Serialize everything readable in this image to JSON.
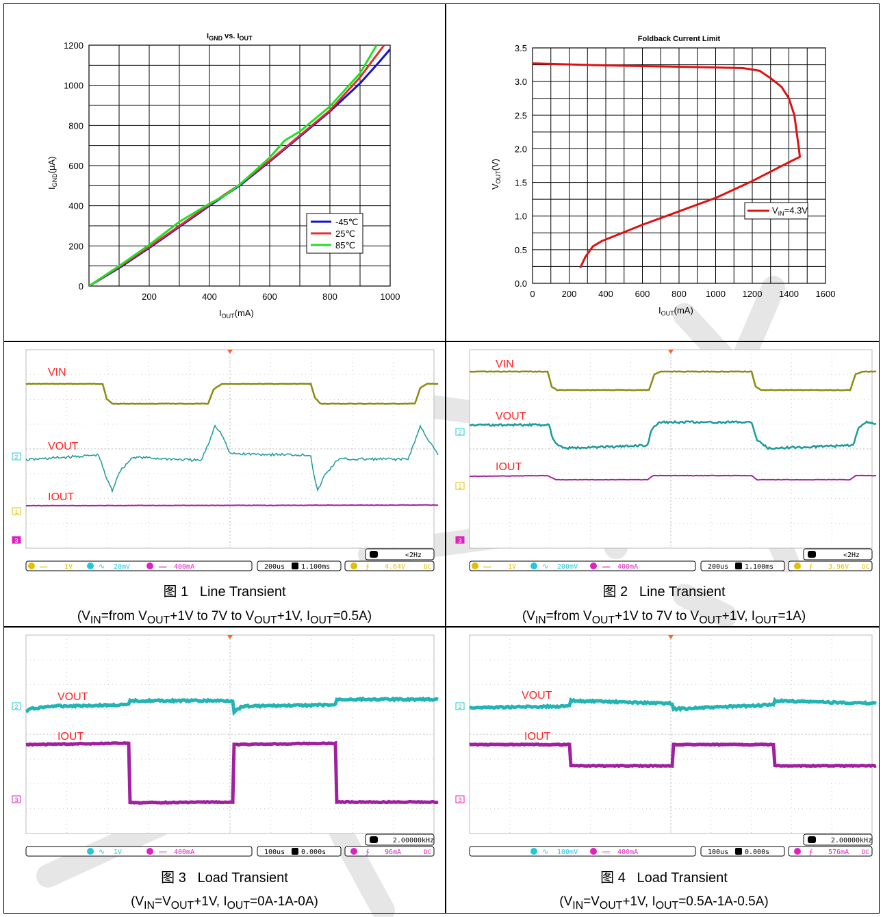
{
  "chart_data": [
    {
      "type": "line",
      "title": "I_GND vs. I_OUT",
      "title_parts": {
        "main1": "I",
        "sub1": "GND",
        "mid": " vs. I",
        "sub2": "OUT"
      },
      "xlabel_parts": {
        "main": "I",
        "sub": "OUT",
        "unit": "(mA)"
      },
      "ylabel_parts": {
        "main": "I",
        "sub": "GND",
        "unit": "(µA)"
      },
      "xlim": [
        0,
        1000
      ],
      "ylim": [
        0,
        1200
      ],
      "xticks": [
        200,
        400,
        600,
        800,
        1000
      ],
      "yticks": [
        0,
        200,
        400,
        600,
        800,
        1000,
        1200
      ],
      "grid": true,
      "legend_position": "bottom-right",
      "series": [
        {
          "name": "-45℃",
          "color": "#1010d0",
          "x": [
            0,
            100,
            200,
            300,
            400,
            500,
            600,
            700,
            800,
            900,
            960,
            1000
          ],
          "y": [
            0,
            90,
            190,
            295,
            400,
            500,
            620,
            745,
            870,
            1010,
            1110,
            1180
          ]
        },
        {
          "name": "25℃",
          "color": "#e03030",
          "x": [
            0,
            100,
            200,
            300,
            400,
            500,
            600,
            700,
            800,
            900,
            960,
            980
          ],
          "y": [
            0,
            95,
            195,
            300,
            405,
            505,
            625,
            750,
            875,
            1040,
            1160,
            1200
          ]
        },
        {
          "name": "85℃",
          "color": "#20e020",
          "x": [
            0,
            100,
            200,
            300,
            400,
            450,
            500,
            600,
            650,
            700,
            800,
            900,
            955
          ],
          "y": [
            0,
            100,
            205,
            320,
            410,
            450,
            505,
            640,
            725,
            770,
            895,
            1060,
            1200
          ]
        }
      ]
    },
    {
      "type": "line",
      "title": "Foldback Current Limit",
      "xlabel_parts": {
        "main": "I",
        "sub": "OUT",
        "unit": "(mA)"
      },
      "ylabel_parts": {
        "main": "V",
        "sub": "OUT",
        "unit": "(V)"
      },
      "xlim": [
        0,
        1600
      ],
      "ylim": [
        0,
        3.5
      ],
      "xticks": [
        0,
        200,
        400,
        600,
        800,
        1000,
        1200,
        1400,
        1600
      ],
      "xtick_labels": [
        "0",
        "200",
        "400",
        "600",
        "800",
        "1000",
        "1200",
        "1400",
        "1600"
      ],
      "yticks": [
        0,
        0.5,
        1.0,
        1.5,
        2.0,
        2.5,
        3.0,
        3.5
      ],
      "ytick_labels": [
        "0.0",
        "0.5",
        "1.0",
        "1.5",
        "2.0",
        "2.5",
        "3.0",
        "3.5"
      ],
      "grid": true,
      "legend_position": "right",
      "series": [
        {
          "name_parts": {
            "main": "V",
            "sub": "IN",
            "rest": "=4.3V"
          },
          "color": "#e01010",
          "x": [
            0,
            400,
            800,
            1150,
            1240,
            1300,
            1360,
            1400,
            1430,
            1445,
            1455,
            1460,
            1400,
            1200,
            1000,
            800,
            600,
            380,
            330,
            290,
            260
          ],
          "y": [
            3.27,
            3.24,
            3.22,
            3.2,
            3.16,
            3.05,
            2.92,
            2.75,
            2.5,
            2.2,
            2.0,
            1.88,
            1.8,
            1.52,
            1.27,
            1.07,
            0.87,
            0.63,
            0.55,
            0.4,
            0.23
          ]
        }
      ]
    }
  ],
  "scopes": [
    {
      "labels": [
        "VIN",
        "VOUT",
        "IOUT"
      ],
      "status": {
        "ch1": "1V",
        "ch2": "20mV",
        "ch3": "400mA",
        "time": "200us",
        "delay": "1.100ms",
        "trig_ch": "1",
        "trig": "4.64V",
        "coupling": "DC",
        "freq": "<2Hz"
      }
    },
    {
      "labels": [
        "VIN",
        "VOUT",
        "IOUT"
      ],
      "status": {
        "ch1": "1V",
        "ch2": "200mV",
        "ch3": "400mA",
        "time": "200us",
        "delay": "1.100ms",
        "trig_ch": "1",
        "trig": "3.96V",
        "coupling": "DC",
        "freq": "<2Hz"
      }
    },
    {
      "labels": [
        "VOUT",
        "IOUT"
      ],
      "status": {
        "ch2": "1V",
        "ch3": "400mA",
        "time": "100us",
        "delay": "0.000s",
        "trig_ch": "3",
        "trig": "96mA",
        "coupling": "DC",
        "freq": "2.00000kHz"
      }
    },
    {
      "labels": [
        "VOUT",
        "IOUT"
      ],
      "status": {
        "ch2": "100mV",
        "ch3": "400mA",
        "time": "100us",
        "delay": "0.000s",
        "trig_ch": "3",
        "trig": "576mA",
        "coupling": "DC",
        "freq": "2.00000kHz"
      }
    }
  ],
  "captions": [
    {
      "fig": "图 1",
      "name": "Line Transient",
      "cond": "(V<sub>IN</sub>=from V<sub>OUT</sub>+1V to 7V to V<sub>OUT</sub>+1V, I<sub>OUT</sub>=0.5A)"
    },
    {
      "fig": "图 2",
      "name": "Line Transient",
      "cond": "(V<sub>IN</sub>=from V<sub>OUT</sub>+1V to 7V to V<sub>OUT</sub>+1V, I<sub>OUT</sub>=1A)"
    },
    {
      "fig": "图 3",
      "name": "Load Transient",
      "cond": "(V<sub>IN</sub>=V<sub>OUT</sub>+1V, I<sub>OUT</sub>=0A-1A-0A)"
    },
    {
      "fig": "图 4",
      "name": "Load Transient",
      "cond": "(V<sub>IN</sub>=V<sub>OUT</sub>+1V, I<sub>OUT</sub>=0.5A-1A-0.5A)"
    }
  ],
  "colors": {
    "ch1": "#8a8a10",
    "ch2": "#1a9a9a",
    "ch2b": "#22b4b4",
    "ch3": "#a020a0",
    "label": "#ff2020",
    "statusYellow": "#e0c000",
    "statusCyan": "#20c8d8",
    "statusMagenta": "#e020c0"
  }
}
